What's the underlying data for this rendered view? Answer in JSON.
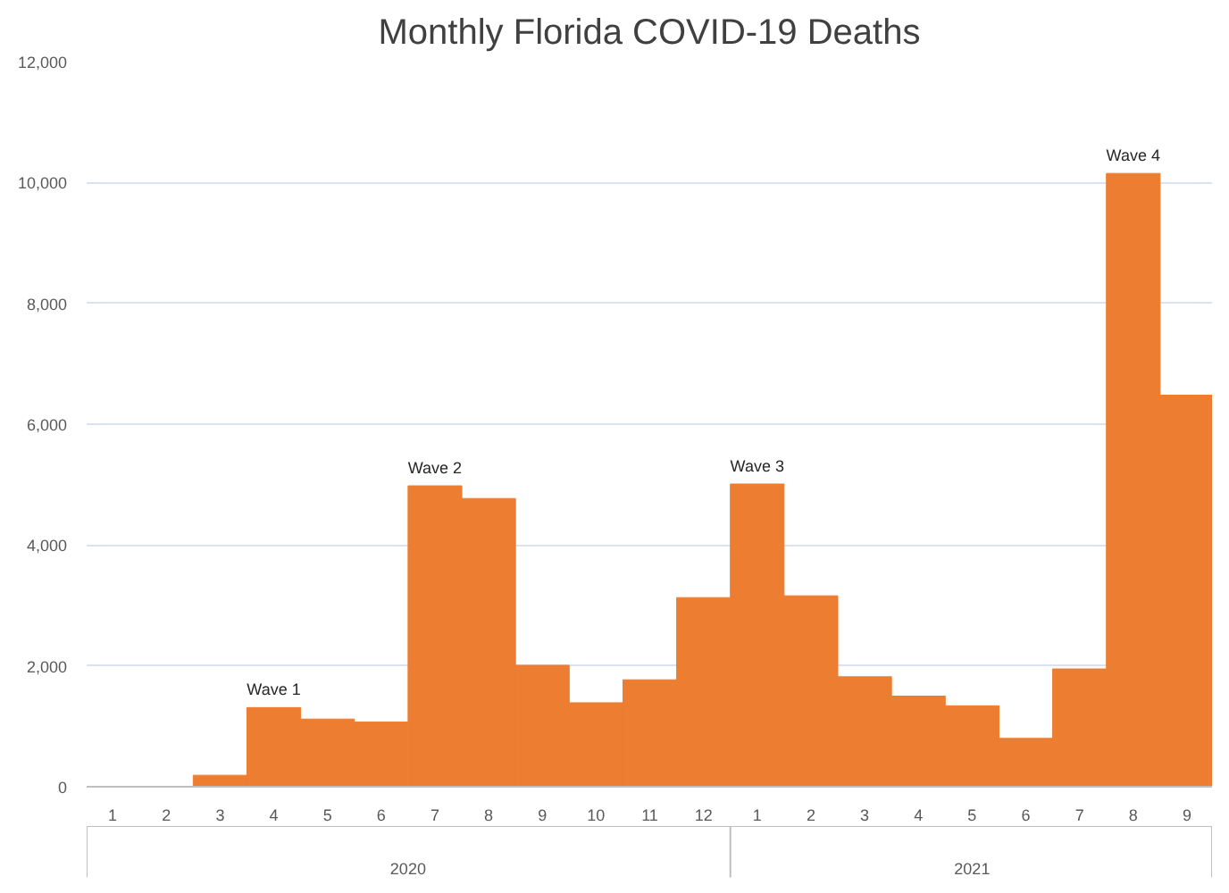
{
  "chart_data": {
    "type": "bar",
    "title": "Monthly Florida COVID-19 Deaths",
    "x": [
      "2020-01",
      "2020-02",
      "2020-03",
      "2020-04",
      "2020-05",
      "2020-06",
      "2020-07",
      "2020-08",
      "2020-09",
      "2020-10",
      "2020-11",
      "2020-12",
      "2021-01",
      "2021-02",
      "2021-03",
      "2021-04",
      "2021-05",
      "2021-06",
      "2021-07",
      "2021-08",
      "2021-09"
    ],
    "values": [
      0,
      0,
      190,
      1310,
      1120,
      1070,
      4980,
      4770,
      2010,
      1390,
      1770,
      3130,
      5010,
      3160,
      1820,
      1500,
      1340,
      800,
      1950,
      10150,
      6480
    ],
    "color": "#ed7d31",
    "xlim": [
      "2019-12-17",
      "2021-09-15"
    ],
    "ylim": [
      0,
      12000
    ],
    "yticks": [
      {
        "value": 0,
        "label": "0"
      },
      {
        "value": 2000,
        "label": "2,000"
      },
      {
        "value": 4000,
        "label": "4,000"
      },
      {
        "value": 6000,
        "label": "6,000"
      },
      {
        "value": 8000,
        "label": "8,000"
      },
      {
        "value": 10000,
        "label": "10,000"
      },
      {
        "value": 12000,
        "label": "12,000"
      }
    ],
    "xticks": [
      {
        "value": "2020-01",
        "label": "1"
      },
      {
        "value": "2020-02",
        "label": "2"
      },
      {
        "value": "2020-03",
        "label": "3"
      },
      {
        "value": "2020-04",
        "label": "4"
      },
      {
        "value": "2020-05",
        "label": "5"
      },
      {
        "value": "2020-06",
        "label": "6"
      },
      {
        "value": "2020-07",
        "label": "7"
      },
      {
        "value": "2020-08",
        "label": "8"
      },
      {
        "value": "2020-09",
        "label": "9"
      },
      {
        "value": "2020-10",
        "label": "10"
      },
      {
        "value": "2020-11",
        "label": "11"
      },
      {
        "value": "2020-12",
        "label": "12"
      },
      {
        "value": "2021-01",
        "label": "1"
      },
      {
        "value": "2021-02",
        "label": "2"
      },
      {
        "value": "2021-03",
        "label": "3"
      },
      {
        "value": "2021-04",
        "label": "4"
      },
      {
        "value": "2021-05",
        "label": "5"
      },
      {
        "value": "2021-06",
        "label": "6"
      },
      {
        "value": "2021-07",
        "label": "7"
      },
      {
        "value": "2021-08",
        "label": "8"
      },
      {
        "value": "2021-09",
        "label": "9"
      }
    ],
    "grid": "y",
    "annotations": [
      {
        "text": "Wave 1",
        "x": "2020-04",
        "y": 1310
      },
      {
        "text": "Wave 2",
        "x": "2020-07",
        "y": 4980
      },
      {
        "text": "Wave 3",
        "x": "2021-01",
        "y": 5010
      },
      {
        "text": "Wave 4",
        "x": "2021-08",
        "y": 10150
      },
      "2020",
      "2021"
    ]
  }
}
